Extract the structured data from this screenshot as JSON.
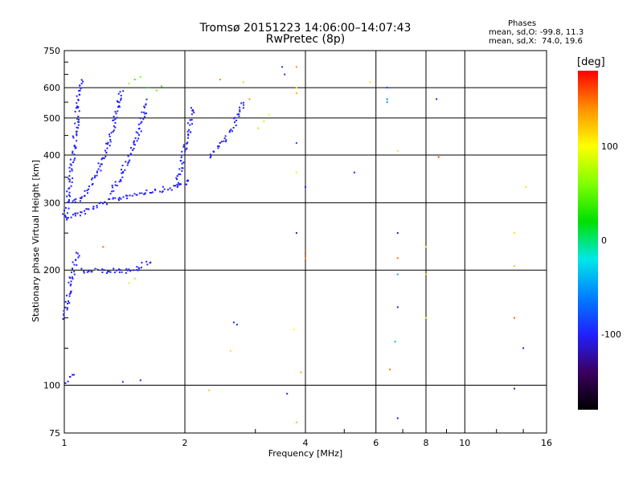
{
  "header": {
    "title": "Tromsø 20151223 14:06:00–14:07:43",
    "subtitle": "RwPretec (8p)"
  },
  "phase_info": {
    "heading": "Phases",
    "line_o": "mean, sd,O: -99.8, 11.3",
    "line_x": "mean, sd,X:  74.0, 19.6"
  },
  "colorbar": {
    "unit_label": "[deg]",
    "range": [
      -180,
      180
    ],
    "ticks": [
      {
        "value": 100,
        "label": "100"
      },
      {
        "value": 0,
        "label": "0"
      },
      {
        "value": -100,
        "label": "-100"
      }
    ],
    "colors": [
      "#000000",
      "#3a0060",
      "#2020ff",
      "#0080ff",
      "#00e8e8",
      "#00e000",
      "#80ff00",
      "#ffff00",
      "#ff9000",
      "#ff0000"
    ]
  },
  "chart_data": {
    "type": "scatter",
    "xlabel": "Frequency [MHz]",
    "ylabel": "Stationary phase Virtual Height [km]",
    "x_scale": "log",
    "y_scale": "log",
    "xlim": [
      1,
      16
    ],
    "ylim": [
      75,
      750
    ],
    "x_ticks": [
      {
        "value": 1,
        "label": "1"
      },
      {
        "value": 2,
        "label": "2"
      },
      {
        "value": 4,
        "label": "4"
      },
      {
        "value": 6,
        "label": "6"
      },
      {
        "value": 8,
        "label": "8"
      },
      {
        "value": 10,
        "label": "10"
      },
      {
        "value": 16,
        "label": "16"
      }
    ],
    "y_ticks": [
      {
        "value": 75,
        "label": "75"
      },
      {
        "value": 100,
        "label": "100"
      },
      {
        "value": 200,
        "label": "200"
      },
      {
        "value": 300,
        "label": "300"
      },
      {
        "value": 400,
        "label": "400"
      },
      {
        "value": 500,
        "label": "500"
      },
      {
        "value": 600,
        "label": "600"
      },
      {
        "value": 750,
        "label": "750"
      }
    ],
    "grid": true,
    "color_scale": "phase [deg]",
    "traces": [
      {
        "phase": -100,
        "x": [
          1.0,
          1.02,
          1.05,
          1.08,
          1.1,
          1.15,
          1.2,
          1.3,
          1.4,
          1.5,
          1.6,
          1.7,
          1.8,
          1.9,
          2.0,
          2.05
        ],
        "y": [
          275,
          278,
          280,
          282,
          284,
          290,
          296,
          305,
          312,
          318,
          322,
          325,
          328,
          332,
          340,
          350
        ]
      },
      {
        "phase": -100,
        "x": [
          1.05,
          1.1,
          1.15,
          1.2,
          1.25,
          1.3,
          1.35,
          1.38
        ],
        "y": [
          300,
          310,
          330,
          360,
          400,
          450,
          520,
          600
        ]
      },
      {
        "phase": -100,
        "x": [
          1.3,
          1.35,
          1.4,
          1.45,
          1.5,
          1.55,
          1.6
        ],
        "y": [
          320,
          340,
          370,
          400,
          430,
          480,
          560
        ]
      },
      {
        "phase": -100,
        "x": [
          1.9,
          1.95,
          2.0,
          2.05,
          2.1
        ],
        "y": [
          340,
          380,
          430,
          480,
          540
        ]
      },
      {
        "phase": -100,
        "x": [
          2.3,
          2.4,
          2.5,
          2.6,
          2.7,
          2.8
        ],
        "y": [
          400,
          420,
          440,
          470,
          510,
          560
        ]
      },
      {
        "phase": -100,
        "x": [
          1.0,
          1.03,
          1.06,
          1.08,
          1.1
        ],
        "y": [
          280,
          350,
          450,
          550,
          640
        ]
      },
      {
        "phase": -100,
        "x": [
          1.0,
          1.02,
          1.04,
          1.06,
          1.08
        ],
        "y": [
          150,
          170,
          190,
          210,
          225
        ]
      },
      {
        "phase": -100,
        "x": [
          1.1,
          1.2,
          1.3,
          1.4,
          1.5,
          1.55,
          1.6,
          1.62
        ],
        "y": [
          200,
          200,
          200,
          200,
          200,
          205,
          210,
          215
        ]
      },
      {
        "phase": -100,
        "x": [
          1.0,
          1.03,
          1.06
        ],
        "y": [
          103,
          105,
          107
        ]
      }
    ],
    "points": [
      {
        "x": 1.5,
        "y": 630,
        "phase": 40
      },
      {
        "x": 1.55,
        "y": 640,
        "phase": 60
      },
      {
        "x": 1.62,
        "y": 600,
        "phase": 30
      },
      {
        "x": 1.7,
        "y": 590,
        "phase": 50
      },
      {
        "x": 1.75,
        "y": 605,
        "phase": 40
      },
      {
        "x": 1.45,
        "y": 615,
        "phase": 70
      },
      {
        "x": 3.05,
        "y": 470,
        "phase": 70
      },
      {
        "x": 3.15,
        "y": 490,
        "phase": 80
      },
      {
        "x": 3.25,
        "y": 510,
        "phase": 90
      },
      {
        "x": 3.8,
        "y": 680,
        "phase": 140
      },
      {
        "x": 3.8,
        "y": 600,
        "phase": 110
      },
      {
        "x": 3.8,
        "y": 580,
        "phase": 130
      },
      {
        "x": 3.8,
        "y": 430,
        "phase": -80
      },
      {
        "x": 3.8,
        "y": 360,
        "phase": 90
      },
      {
        "x": 3.8,
        "y": 250,
        "phase": -110
      },
      {
        "x": 4.0,
        "y": 330,
        "phase": -110
      },
      {
        "x": 4.0,
        "y": 225,
        "phase": 150
      },
      {
        "x": 4.0,
        "y": 215,
        "phase": 140
      },
      {
        "x": 3.75,
        "y": 140,
        "phase": 100
      },
      {
        "x": 3.9,
        "y": 108,
        "phase": 130
      },
      {
        "x": 3.8,
        "y": 80,
        "phase": 60
      },
      {
        "x": 3.6,
        "y": 95,
        "phase": -100
      },
      {
        "x": 5.3,
        "y": 360,
        "phase": -100
      },
      {
        "x": 5.8,
        "y": 620,
        "phase": 110
      },
      {
        "x": 6.4,
        "y": 600,
        "phase": -90
      },
      {
        "x": 6.4,
        "y": 560,
        "phase": -60
      },
      {
        "x": 6.4,
        "y": 550,
        "phase": -50
      },
      {
        "x": 6.8,
        "y": 410,
        "phase": 110
      },
      {
        "x": 6.8,
        "y": 250,
        "phase": -110
      },
      {
        "x": 6.8,
        "y": 215,
        "phase": 150
      },
      {
        "x": 6.8,
        "y": 195,
        "phase": -40
      },
      {
        "x": 6.8,
        "y": 160,
        "phase": -110
      },
      {
        "x": 6.7,
        "y": 130,
        "phase": -40
      },
      {
        "x": 6.5,
        "y": 110,
        "phase": 150
      },
      {
        "x": 6.8,
        "y": 82,
        "phase": -110
      },
      {
        "x": 8.0,
        "y": 230,
        "phase": 100
      },
      {
        "x": 8.0,
        "y": 195,
        "phase": 120
      },
      {
        "x": 8.0,
        "y": 150,
        "phase": 90
      },
      {
        "x": 8.5,
        "y": 560,
        "phase": -100
      },
      {
        "x": 8.6,
        "y": 395,
        "phase": 160
      },
      {
        "x": 13.3,
        "y": 250,
        "phase": 110
      },
      {
        "x": 13.3,
        "y": 205,
        "phase": 120
      },
      {
        "x": 13.3,
        "y": 150,
        "phase": 150
      },
      {
        "x": 13.3,
        "y": 98,
        "phase": -110
      },
      {
        "x": 14.0,
        "y": 125,
        "phase": -110
      },
      {
        "x": 14.2,
        "y": 330,
        "phase": 110
      },
      {
        "x": 2.65,
        "y": 146,
        "phase": -100
      },
      {
        "x": 2.7,
        "y": 144,
        "phase": -90
      },
      {
        "x": 2.6,
        "y": 123,
        "phase": 110
      },
      {
        "x": 2.3,
        "y": 97,
        "phase": 120
      },
      {
        "x": 1.4,
        "y": 102,
        "phase": -100
      },
      {
        "x": 1.55,
        "y": 103,
        "phase": -100
      },
      {
        "x": 1.45,
        "y": 185,
        "phase": 90
      },
      {
        "x": 1.5,
        "y": 190,
        "phase": 70
      },
      {
        "x": 1.25,
        "y": 230,
        "phase": 150
      },
      {
        "x": 1.2,
        "y": 200,
        "phase": 110
      },
      {
        "x": 2.45,
        "y": 630,
        "phase": 140
      },
      {
        "x": 2.8,
        "y": 620,
        "phase": 120
      },
      {
        "x": 2.9,
        "y": 560,
        "phase": 140
      },
      {
        "x": 3.5,
        "y": 680,
        "phase": -90
      },
      {
        "x": 3.55,
        "y": 650,
        "phase": -100
      }
    ]
  }
}
